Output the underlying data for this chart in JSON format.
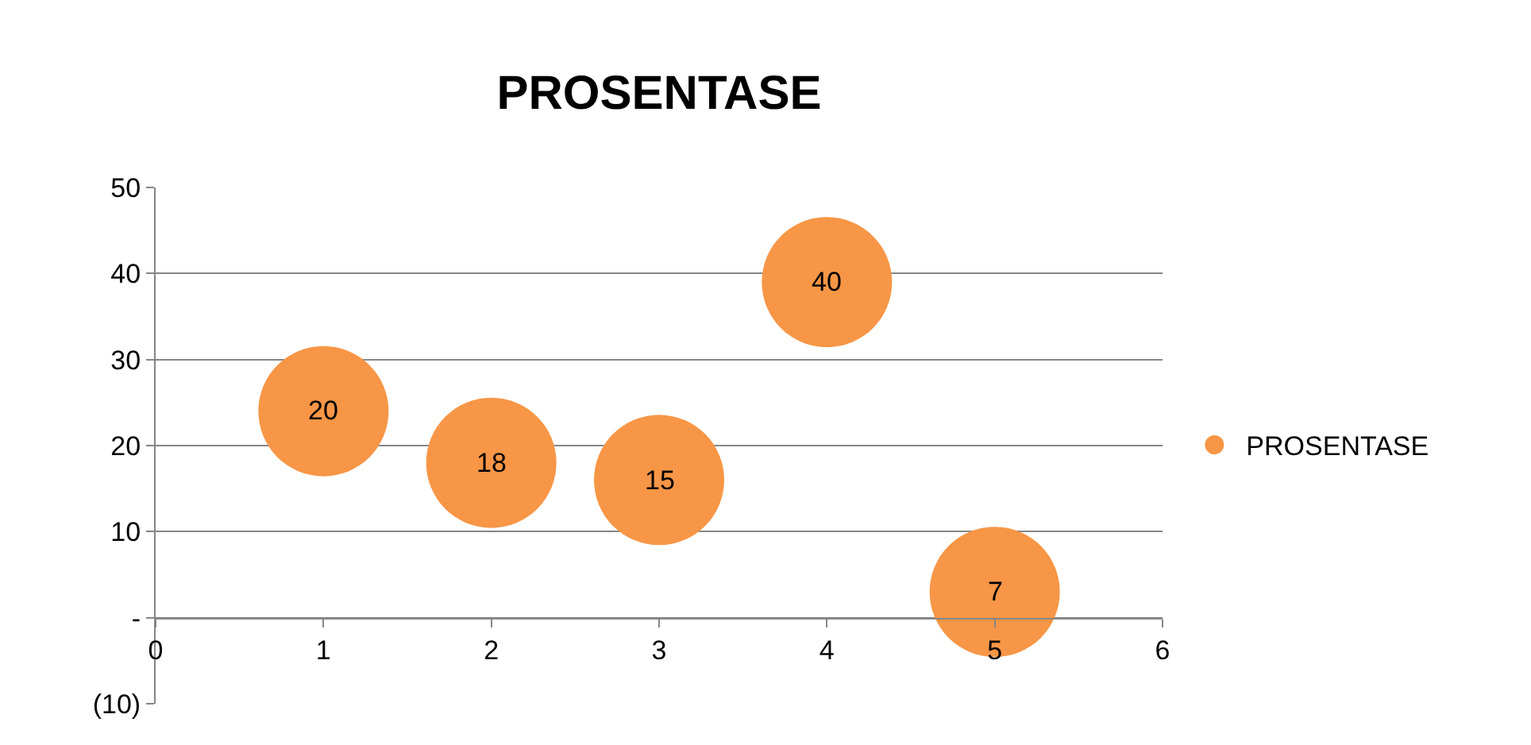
{
  "chart_data": {
    "type": "scatter",
    "title": "PROSENTASE",
    "x": [
      1,
      2,
      3,
      4,
      5
    ],
    "series": [
      {
        "name": "PROSENTASE",
        "color": "#f79646",
        "values": [
          24,
          18,
          16,
          39,
          3
        ]
      }
    ],
    "annotations": [
      {
        "text": "20",
        "x": 1,
        "y": 24
      },
      {
        "text": "18",
        "x": 2,
        "y": 18
      },
      {
        "text": "15",
        "x": 3,
        "y": 16
      },
      {
        "text": "40",
        "x": 4,
        "y": 39
      },
      {
        "text": "7",
        "x": 5,
        "y": 3
      }
    ],
    "xlim": [
      0,
      6
    ],
    "xticks": [
      0,
      1,
      2,
      3,
      4,
      5,
      6
    ],
    "ylim": [
      -10,
      50
    ],
    "yticks": [
      {
        "value": -10,
        "label": "(10)"
      },
      {
        "value": 0,
        "label": "-"
      },
      10,
      20,
      30,
      40,
      50
    ],
    "grid": "y",
    "legend": "right",
    "marker": "circle"
  }
}
